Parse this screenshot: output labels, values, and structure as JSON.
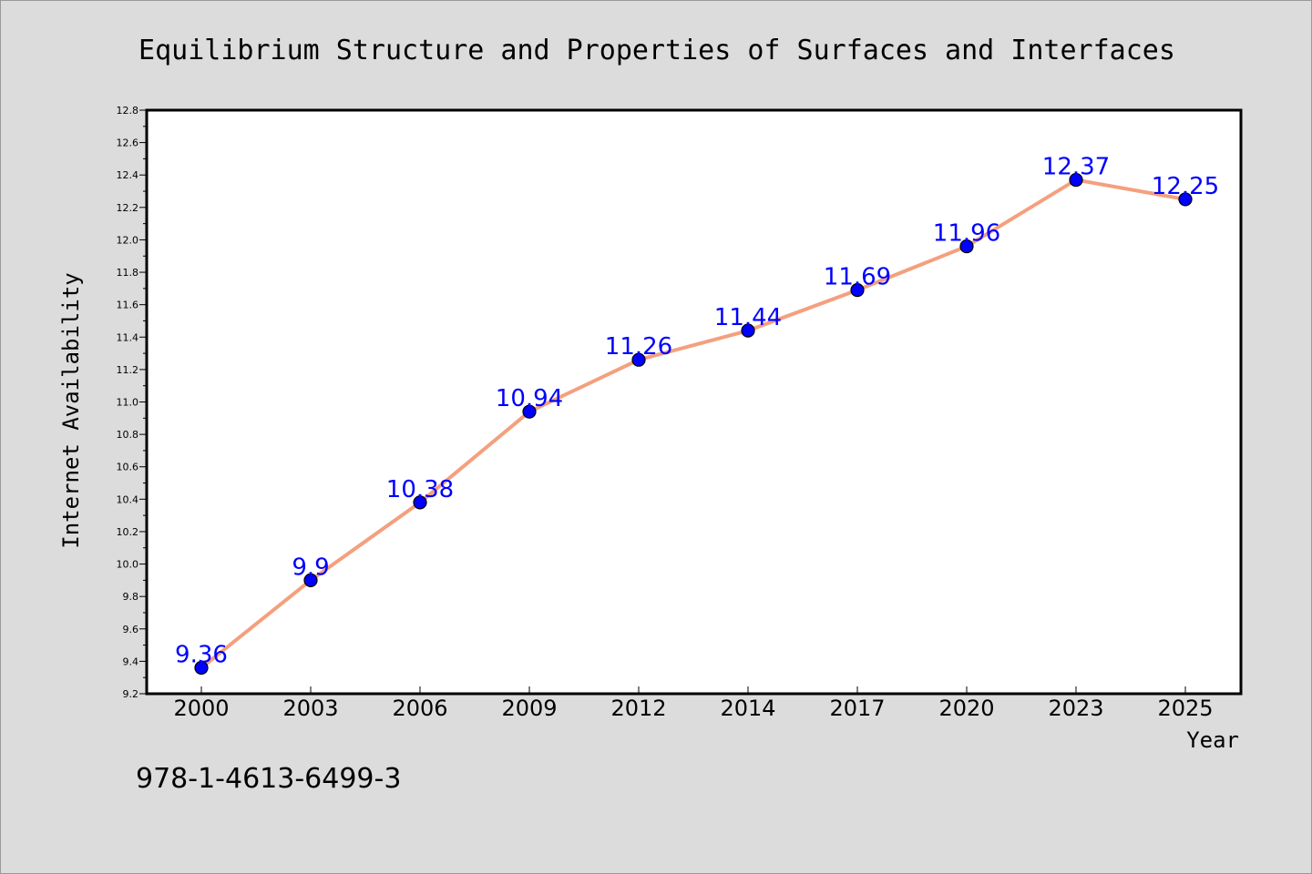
{
  "chart_data": {
    "type": "line",
    "title": "Equilibrium Structure and Properties of Surfaces and Interfaces",
    "xlabel": "Year",
    "ylabel": "Internet Availability",
    "categories": [
      "2000",
      "2003",
      "2006",
      "2009",
      "2012",
      "2014",
      "2017",
      "2020",
      "2023",
      "2025"
    ],
    "values": [
      9.36,
      9.9,
      10.38,
      10.94,
      11.26,
      11.44,
      11.69,
      11.96,
      12.37,
      12.25
    ],
    "labels": [
      "9.36",
      "9.9",
      "10.38",
      "10.94",
      "11.26",
      "11.44",
      "11.69",
      "11.96",
      "12.37",
      "12.25"
    ],
    "ylim": [
      9.2,
      12.8
    ],
    "yticks": [
      "9.2",
      "9.4",
      "9.6",
      "9.8",
      "10.0",
      "10.2",
      "10.4",
      "10.6",
      "10.8",
      "11.0",
      "11.2",
      "11.4",
      "11.6",
      "11.8",
      "12.0",
      "12.2",
      "12.4",
      "12.6",
      "12.8"
    ],
    "grid": false,
    "line_color": "#f4a07e",
    "marker_color": "#0000ff",
    "label_color": "#0000ff"
  },
  "footer_text": "978-1-4613-6499-3"
}
